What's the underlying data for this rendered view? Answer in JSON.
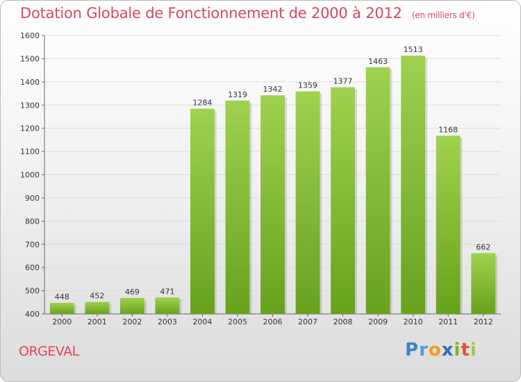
{
  "title": "Dotation Globale de Fonctionnement de 2000 à 2012",
  "unit": "(en milliers d'€)",
  "commune": "ORGEVAL",
  "logo": {
    "letters": [
      "P",
      "r",
      "o",
      "x",
      "i",
      "t",
      "i"
    ]
  },
  "colors": {
    "bar_light": "#9fd24e",
    "bar_dark": "#67a21d",
    "title": "#d9455f",
    "grid": "#dddddd"
  },
  "chart_data": {
    "type": "bar",
    "title": "Dotation Globale de Fonctionnement de 2000 à 2012",
    "subtitle": "(en milliers d'€)",
    "categories": [
      "2000",
      "2001",
      "2002",
      "2003",
      "2004",
      "2005",
      "2006",
      "2007",
      "2008",
      "2009",
      "2010",
      "2011",
      "2012"
    ],
    "values": [
      448,
      452,
      469,
      471,
      1284,
      1319,
      1342,
      1359,
      1377,
      1463,
      1513,
      1168,
      662
    ],
    "ylim": [
      400,
      1600
    ],
    "yticks": [
      400,
      500,
      600,
      700,
      800,
      900,
      1000,
      1100,
      1200,
      1300,
      1400,
      1500,
      1600
    ],
    "grid": true,
    "data_labels": true
  }
}
